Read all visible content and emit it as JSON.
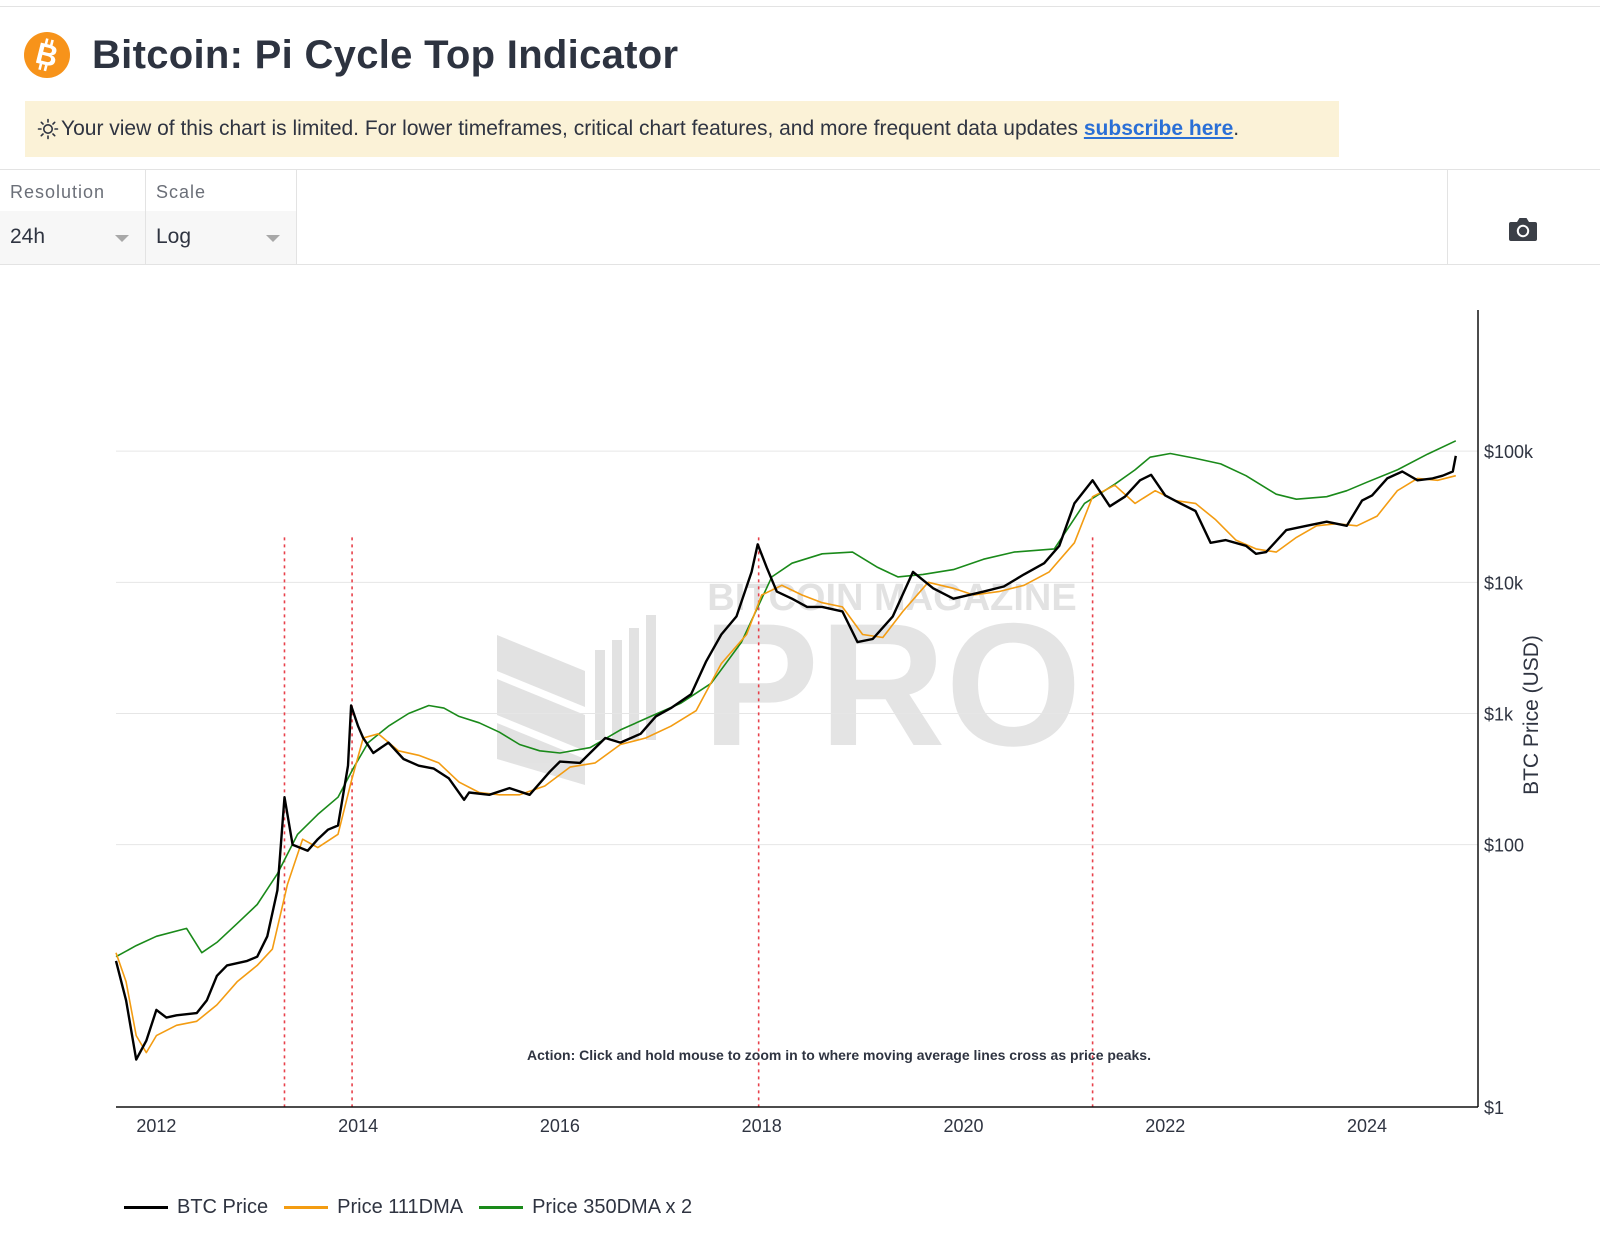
{
  "header": {
    "title": "Bitcoin: Pi Cycle Top Indicator",
    "logo_icon": "bitcoin-icon",
    "logo_color": "#f7931a"
  },
  "notice": {
    "icon": "sun-icon",
    "text": "Your view of this chart is limited. For lower timeframes, critical chart features, and more frequent data updates ",
    "link_text": "subscribe here",
    "suffix": "."
  },
  "controls": {
    "resolution": {
      "label": "Resolution",
      "value": "24h"
    },
    "scale": {
      "label": "Scale",
      "value": "Log"
    },
    "camera_icon": "camera-icon"
  },
  "watermark": {
    "top_text": "BITCOIN MAGAZINE",
    "main_text": "PRO"
  },
  "chart_data": {
    "type": "line",
    "title": "",
    "xlabel": "",
    "ylabel": "BTC Price (USD)",
    "yscale": "log",
    "ylim": [
      1,
      1000000
    ],
    "xlim": [
      2011.6,
      2025.1
    ],
    "x_ticks": [
      "2012",
      "2014",
      "2016",
      "2018",
      "2020",
      "2022",
      "2024"
    ],
    "y_ticks": [
      {
        "value": 1,
        "label": "$1"
      },
      {
        "value": 100,
        "label": "$100"
      },
      {
        "value": 1000,
        "label": "$1k"
      },
      {
        "value": 10000,
        "label": "$10k"
      },
      {
        "value": 100000,
        "label": "$100k"
      }
    ],
    "grid": true,
    "legend_position": "bottom-left",
    "annotation": "Action: Click and hold mouse to zoom in to where moving average lines cross as price peaks.",
    "series": [
      {
        "name": "BTC Price",
        "color": "#000000",
        "x": [
          2011.6,
          2011.7,
          2011.8,
          2011.9,
          2012.0,
          2012.1,
          2012.2,
          2012.4,
          2012.5,
          2012.6,
          2012.7,
          2012.9,
          2013.0,
          2013.1,
          2013.2,
          2013.27,
          2013.35,
          2013.5,
          2013.6,
          2013.7,
          2013.8,
          2013.9,
          2013.93,
          2014.0,
          2014.05,
          2014.15,
          2014.3,
          2014.45,
          2014.6,
          2014.75,
          2014.9,
          2015.05,
          2015.1,
          2015.3,
          2015.5,
          2015.7,
          2015.9,
          2016.0,
          2016.2,
          2016.45,
          2016.6,
          2016.8,
          2016.95,
          2017.1,
          2017.3,
          2017.45,
          2017.6,
          2017.75,
          2017.9,
          2017.96,
          2018.05,
          2018.15,
          2018.3,
          2018.45,
          2018.6,
          2018.8,
          2018.95,
          2019.1,
          2019.3,
          2019.5,
          2019.7,
          2019.9,
          2020.2,
          2020.4,
          2020.6,
          2020.8,
          2020.95,
          2021.1,
          2021.28,
          2021.45,
          2021.6,
          2021.75,
          2021.86,
          2022.0,
          2022.15,
          2022.3,
          2022.45,
          2022.6,
          2022.8,
          2022.9,
          2023.0,
          2023.2,
          2023.4,
          2023.6,
          2023.8,
          2023.95,
          2024.05,
          2024.2,
          2024.35,
          2024.5,
          2024.65,
          2024.75,
          2024.85,
          2024.88
        ],
        "y": [
          13,
          6.5,
          2.3,
          3.2,
          5.5,
          4.8,
          5,
          5.2,
          6.5,
          10,
          12,
          13,
          14,
          20,
          45,
          230,
          100,
          90,
          110,
          130,
          140,
          400,
          1150,
          800,
          650,
          500,
          600,
          450,
          400,
          380,
          320,
          220,
          250,
          240,
          270,
          240,
          360,
          430,
          420,
          650,
          600,
          700,
          950,
          1100,
          1400,
          2500,
          4000,
          5500,
          12000,
          19500,
          13000,
          8500,
          7500,
          6500,
          6500,
          6000,
          3500,
          3700,
          5500,
          12000,
          9000,
          7500,
          8500,
          9300,
          11500,
          14000,
          19000,
          40000,
          60000,
          38000,
          45000,
          60000,
          66000,
          46000,
          40000,
          35000,
          20000,
          21000,
          19000,
          16500,
          17000,
          25000,
          27000,
          29000,
          27000,
          42000,
          46000,
          62000,
          70000,
          60000,
          62000,
          65000,
          70000,
          92000
        ]
      },
      {
        "name": "Price 111DMA",
        "color": "#f39c12",
        "x": [
          2011.6,
          2011.7,
          2011.8,
          2011.9,
          2012.0,
          2012.2,
          2012.4,
          2012.6,
          2012.8,
          2013.0,
          2013.15,
          2013.3,
          2013.45,
          2013.6,
          2013.8,
          2013.93,
          2014.05,
          2014.2,
          2014.4,
          2014.6,
          2014.8,
          2015.0,
          2015.2,
          2015.4,
          2015.6,
          2015.85,
          2016.1,
          2016.35,
          2016.6,
          2016.85,
          2017.1,
          2017.35,
          2017.6,
          2017.85,
          2018.0,
          2018.2,
          2018.4,
          2018.6,
          2018.8,
          2019.0,
          2019.2,
          2019.4,
          2019.65,
          2019.9,
          2020.1,
          2020.35,
          2020.6,
          2020.85,
          2021.1,
          2021.28,
          2021.5,
          2021.7,
          2021.9,
          2022.1,
          2022.3,
          2022.5,
          2022.7,
          2022.9,
          2023.1,
          2023.3,
          2023.5,
          2023.7,
          2023.9,
          2024.1,
          2024.3,
          2024.5,
          2024.7,
          2024.88
        ],
        "y": [
          15,
          9,
          3.5,
          2.6,
          3.5,
          4.2,
          4.5,
          6,
          9,
          12,
          16,
          50,
          110,
          95,
          120,
          300,
          650,
          700,
          520,
          480,
          420,
          300,
          250,
          240,
          240,
          280,
          390,
          420,
          580,
          650,
          800,
          1050,
          2400,
          4000,
          8000,
          9500,
          8000,
          7000,
          6500,
          4000,
          3800,
          6000,
          10000,
          9000,
          8000,
          8500,
          9500,
          12000,
          20000,
          45000,
          55000,
          40000,
          50000,
          42000,
          40000,
          30000,
          21000,
          18000,
          17000,
          22000,
          27000,
          28000,
          27000,
          32000,
          50000,
          62000,
          60000,
          65000
        ]
      },
      {
        "name": "Price 350DMA x 2",
        "color": "#1a8a1a",
        "x": [
          2011.6,
          2011.8,
          2012.0,
          2012.3,
          2012.45,
          2012.6,
          2012.8,
          2013.0,
          2013.2,
          2013.4,
          2013.6,
          2013.8,
          2013.95,
          2014.1,
          2014.3,
          2014.5,
          2014.7,
          2014.85,
          2015.0,
          2015.2,
          2015.4,
          2015.6,
          2015.8,
          2016.0,
          2016.3,
          2016.6,
          2016.9,
          2017.2,
          2017.5,
          2017.8,
          2018.1,
          2018.3,
          2018.6,
          2018.9,
          2019.15,
          2019.35,
          2019.6,
          2019.9,
          2020.2,
          2020.5,
          2020.9,
          2021.2,
          2021.5,
          2021.7,
          2021.85,
          2022.05,
          2022.3,
          2022.55,
          2022.8,
          2023.1,
          2023.3,
          2023.6,
          2023.8,
          2024.0,
          2024.3,
          2024.6,
          2024.88
        ],
        "y": [
          14,
          17,
          20,
          23,
          15,
          18,
          25,
          35,
          60,
          120,
          170,
          230,
          380,
          600,
          800,
          1000,
          1150,
          1100,
          950,
          850,
          720,
          580,
          520,
          500,
          550,
          750,
          950,
          1200,
          1700,
          3500,
          11000,
          14000,
          16500,
          17000,
          13000,
          11000,
          11500,
          12500,
          15000,
          17000,
          18000,
          40000,
          56000,
          72000,
          90000,
          96000,
          88000,
          80000,
          65000,
          47000,
          43000,
          45000,
          50000,
          58000,
          72000,
          95000,
          120000
        ]
      }
    ],
    "vlines": {
      "color": "#e8414b",
      "style": "dotted",
      "x": [
        2013.27,
        2013.94,
        2017.97,
        2021.28
      ]
    }
  }
}
